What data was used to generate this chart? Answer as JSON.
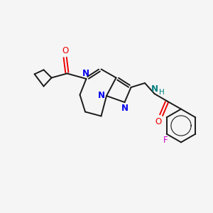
{
  "bg_color": "#f5f5f5",
  "bond_color": "#1a1a1a",
  "N_color": "#0000ee",
  "O_color": "#ee0000",
  "F_color": "#cc00cc",
  "NH_color": "#008080",
  "figsize": [
    3.0,
    3.0
  ],
  "dpi": 100,
  "xlim": [
    0,
    10
  ],
  "ylim": [
    0,
    10
  ]
}
